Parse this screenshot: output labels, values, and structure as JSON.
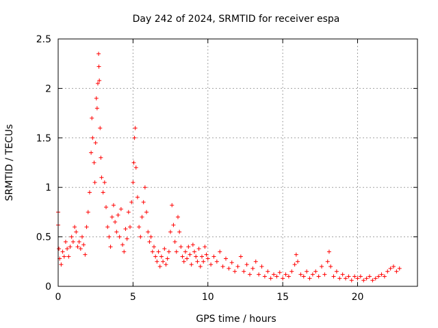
{
  "chart_data": {
    "type": "scatter",
    "title": "Day 242 of 2024, SRMTID for receiver espa",
    "xlabel": "GPS time / hours",
    "ylabel": "SRMTID / TECUs",
    "xlim": [
      0,
      24
    ],
    "ylim": [
      0,
      2.5
    ],
    "grid": true,
    "marker": "plus",
    "color": "#ff0000",
    "x_ticks": [
      {
        "value": 0,
        "label": "0"
      },
      {
        "value": 5,
        "label": "5"
      },
      {
        "value": 10,
        "label": "10"
      },
      {
        "value": 15,
        "label": "15"
      },
      {
        "value": 20,
        "label": "20"
      }
    ],
    "y_ticks": [
      {
        "value": 0,
        "label": "0"
      },
      {
        "value": 0.5,
        "label": "0.5"
      },
      {
        "value": 1,
        "label": "1"
      },
      {
        "value": 1.5,
        "label": "1.5"
      },
      {
        "value": 2,
        "label": "2"
      },
      {
        "value": 2.5,
        "label": "2.5"
      }
    ],
    "series": [
      {
        "name": "SRMTID",
        "points": [
          [
            0.0,
            0.75
          ],
          [
            0.0,
            0.62
          ],
          [
            0.05,
            0.38
          ],
          [
            0.1,
            0.28
          ],
          [
            0.2,
            0.22
          ],
          [
            0.3,
            0.35
          ],
          [
            0.4,
            0.3
          ],
          [
            0.5,
            0.45
          ],
          [
            0.6,
            0.38
          ],
          [
            0.7,
            0.3
          ],
          [
            0.8,
            0.4
          ],
          [
            0.9,
            0.5
          ],
          [
            1.0,
            0.45
          ],
          [
            1.1,
            0.6
          ],
          [
            1.2,
            0.55
          ],
          [
            1.3,
            0.4
          ],
          [
            1.4,
            0.45
          ],
          [
            1.5,
            0.38
          ],
          [
            1.6,
            0.5
          ],
          [
            1.7,
            0.42
          ],
          [
            1.8,
            0.32
          ],
          [
            1.9,
            0.6
          ],
          [
            2.0,
            0.75
          ],
          [
            2.1,
            0.95
          ],
          [
            2.2,
            1.35
          ],
          [
            2.25,
            1.7
          ],
          [
            2.3,
            1.5
          ],
          [
            2.4,
            1.25
          ],
          [
            2.45,
            1.05
          ],
          [
            2.5,
            1.45
          ],
          [
            2.55,
            1.9
          ],
          [
            2.6,
            1.8
          ],
          [
            2.65,
            2.05
          ],
          [
            2.7,
            2.35
          ],
          [
            2.72,
            2.22
          ],
          [
            2.75,
            2.08
          ],
          [
            2.8,
            1.6
          ],
          [
            2.85,
            1.3
          ],
          [
            2.9,
            1.1
          ],
          [
            3.0,
            0.95
          ],
          [
            3.1,
            1.05
          ],
          [
            3.2,
            0.8
          ],
          [
            3.3,
            0.6
          ],
          [
            3.4,
            0.5
          ],
          [
            3.5,
            0.4
          ],
          [
            3.6,
            0.7
          ],
          [
            3.7,
            0.82
          ],
          [
            3.8,
            0.65
          ],
          [
            3.9,
            0.55
          ],
          [
            4.0,
            0.72
          ],
          [
            4.1,
            0.5
          ],
          [
            4.2,
            0.78
          ],
          [
            4.3,
            0.42
          ],
          [
            4.4,
            0.35
          ],
          [
            4.5,
            0.58
          ],
          [
            4.6,
            0.48
          ],
          [
            4.7,
            0.75
          ],
          [
            4.8,
            0.6
          ],
          [
            4.9,
            0.85
          ],
          [
            5.0,
            1.05
          ],
          [
            5.05,
            1.25
          ],
          [
            5.1,
            1.5
          ],
          [
            5.15,
            1.6
          ],
          [
            5.2,
            1.2
          ],
          [
            5.3,
            0.9
          ],
          [
            5.4,
            0.6
          ],
          [
            5.5,
            0.5
          ],
          [
            5.6,
            0.7
          ],
          [
            5.7,
            0.85
          ],
          [
            5.8,
            1.0
          ],
          [
            5.9,
            0.75
          ],
          [
            6.0,
            0.55
          ],
          [
            6.1,
            0.45
          ],
          [
            6.2,
            0.5
          ],
          [
            6.3,
            0.35
          ],
          [
            6.4,
            0.4
          ],
          [
            6.5,
            0.3
          ],
          [
            6.6,
            0.25
          ],
          [
            6.7,
            0.35
          ],
          [
            6.8,
            0.2
          ],
          [
            6.9,
            0.3
          ],
          [
            7.0,
            0.25
          ],
          [
            7.1,
            0.38
          ],
          [
            7.2,
            0.22
          ],
          [
            7.3,
            0.28
          ],
          [
            7.4,
            0.35
          ],
          [
            7.5,
            0.55
          ],
          [
            7.6,
            0.82
          ],
          [
            7.7,
            0.62
          ],
          [
            7.8,
            0.45
          ],
          [
            7.9,
            0.35
          ],
          [
            8.0,
            0.7
          ],
          [
            8.1,
            0.55
          ],
          [
            8.2,
            0.4
          ],
          [
            8.3,
            0.3
          ],
          [
            8.4,
            0.25
          ],
          [
            8.5,
            0.35
          ],
          [
            8.6,
            0.28
          ],
          [
            8.7,
            0.4
          ],
          [
            8.8,
            0.32
          ],
          [
            8.9,
            0.22
          ],
          [
            9.0,
            0.42
          ],
          [
            9.1,
            0.35
          ],
          [
            9.2,
            0.3
          ],
          [
            9.3,
            0.25
          ],
          [
            9.4,
            0.38
          ],
          [
            9.5,
            0.2
          ],
          [
            9.6,
            0.3
          ],
          [
            9.7,
            0.25
          ],
          [
            9.8,
            0.4
          ],
          [
            9.9,
            0.32
          ],
          [
            10.0,
            0.28
          ],
          [
            10.2,
            0.22
          ],
          [
            10.4,
            0.3
          ],
          [
            10.6,
            0.25
          ],
          [
            10.8,
            0.35
          ],
          [
            11.0,
            0.2
          ],
          [
            11.2,
            0.28
          ],
          [
            11.4,
            0.18
          ],
          [
            11.6,
            0.24
          ],
          [
            11.8,
            0.15
          ],
          [
            12.0,
            0.2
          ],
          [
            12.2,
            0.3
          ],
          [
            12.4,
            0.15
          ],
          [
            12.6,
            0.22
          ],
          [
            12.8,
            0.12
          ],
          [
            13.0,
            0.18
          ],
          [
            13.2,
            0.25
          ],
          [
            13.4,
            0.12
          ],
          [
            13.6,
            0.2
          ],
          [
            13.8,
            0.1
          ],
          [
            14.0,
            0.15
          ],
          [
            14.2,
            0.08
          ],
          [
            14.4,
            0.12
          ],
          [
            14.6,
            0.1
          ],
          [
            14.8,
            0.14
          ],
          [
            15.0,
            0.08
          ],
          [
            15.2,
            0.12
          ],
          [
            15.4,
            0.1
          ],
          [
            15.6,
            0.15
          ],
          [
            15.8,
            0.22
          ],
          [
            15.9,
            0.32
          ],
          [
            16.0,
            0.25
          ],
          [
            16.2,
            0.12
          ],
          [
            16.4,
            0.1
          ],
          [
            16.6,
            0.15
          ],
          [
            16.8,
            0.08
          ],
          [
            17.0,
            0.12
          ],
          [
            17.2,
            0.15
          ],
          [
            17.4,
            0.1
          ],
          [
            17.6,
            0.2
          ],
          [
            17.8,
            0.12
          ],
          [
            18.0,
            0.25
          ],
          [
            18.1,
            0.35
          ],
          [
            18.2,
            0.2
          ],
          [
            18.4,
            0.1
          ],
          [
            18.6,
            0.15
          ],
          [
            18.8,
            0.08
          ],
          [
            19.0,
            0.12
          ],
          [
            19.2,
            0.08
          ],
          [
            19.4,
            0.1
          ],
          [
            19.6,
            0.06
          ],
          [
            19.8,
            0.1
          ],
          [
            20.0,
            0.08
          ],
          [
            20.2,
            0.1
          ],
          [
            20.4,
            0.06
          ],
          [
            20.6,
            0.08
          ],
          [
            20.8,
            0.1
          ],
          [
            21.0,
            0.06
          ],
          [
            21.2,
            0.08
          ],
          [
            21.4,
            0.1
          ],
          [
            21.6,
            0.12
          ],
          [
            21.8,
            0.1
          ],
          [
            22.0,
            0.15
          ],
          [
            22.2,
            0.18
          ],
          [
            22.4,
            0.2
          ],
          [
            22.6,
            0.15
          ],
          [
            22.8,
            0.18
          ]
        ]
      }
    ]
  }
}
